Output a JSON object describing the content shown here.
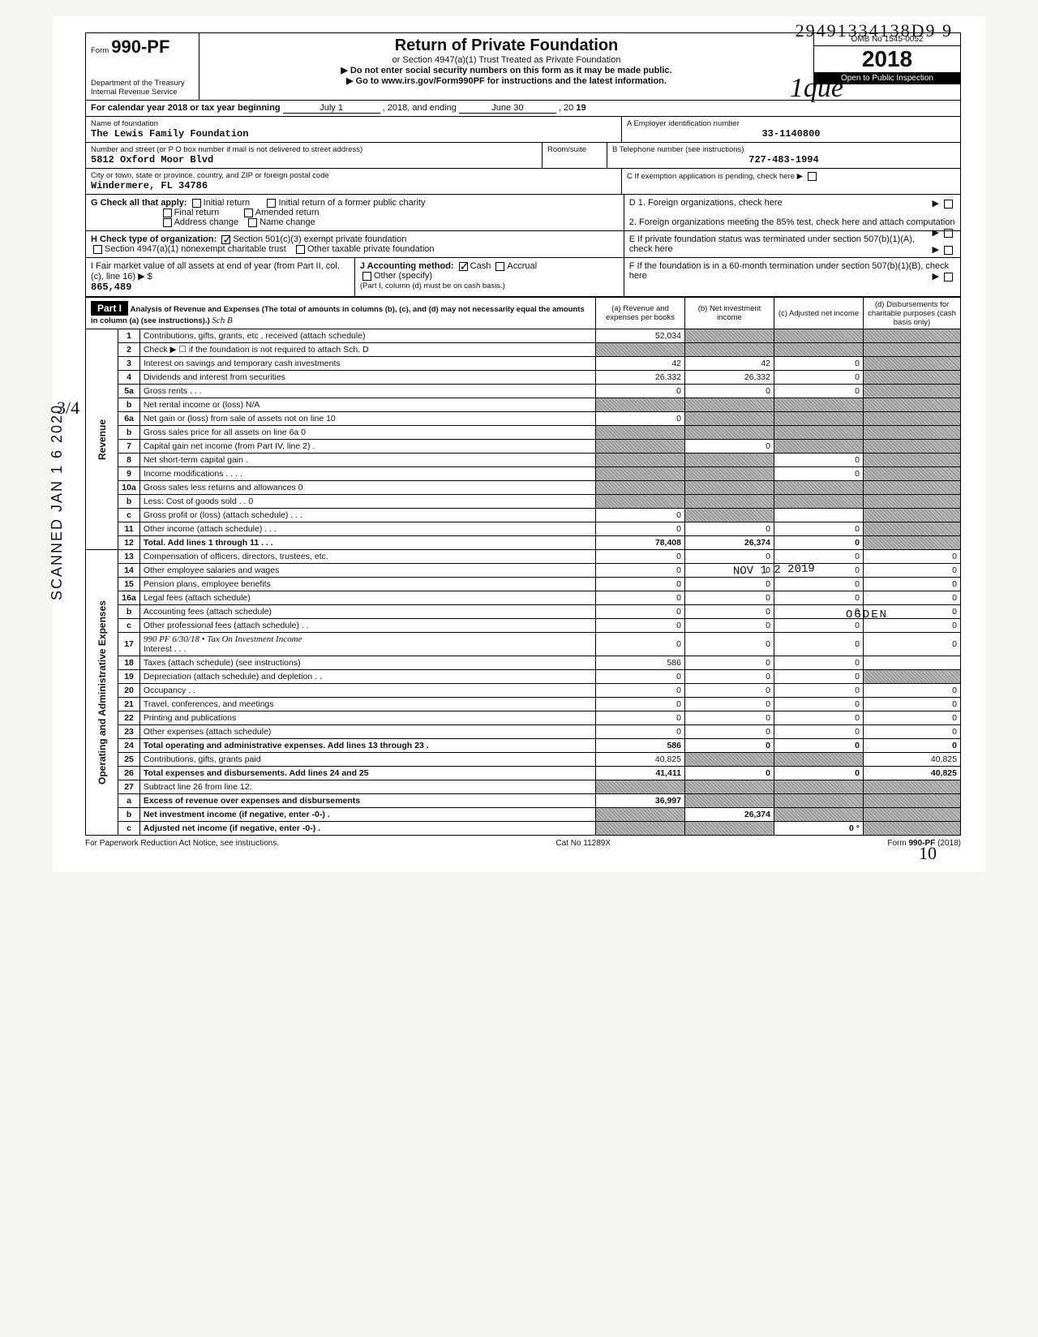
{
  "stamp_topright": "29491334138D9  9",
  "initials": "1que",
  "side_scanned": "SCANNED  JAN 1 6 2020",
  "side_fraction": "3/4",
  "form": {
    "form_prefix": "Form",
    "form_no": "990-PF",
    "dept": "Department of the Treasury",
    "irs": "Internal Revenue Service",
    "title": "Return of Private Foundation",
    "subtitle1": "or Section 4947(a)(1) Trust Treated as Private Foundation",
    "subtitle2": "▶ Do not enter social security numbers on this form as it may be made public.",
    "subtitle3": "▶ Go to www.irs.gov/Form990PF for instructions and the latest information.",
    "omb": "OMB No 1545-0052",
    "year": "2018",
    "open": "Open to Public Inspection"
  },
  "period": {
    "label": "For calendar year 2018 or tax year beginning",
    "begin": "July 1",
    "mid": ", 2018, and ending",
    "end": "June 30",
    "endyr_prefix": ", 20",
    "endyr": "19"
  },
  "id": {
    "name_lbl": "Name of foundation",
    "name": "The Lewis Family Foundation",
    "ein_lbl": "A  Employer identification number",
    "ein": "33-1140800",
    "addr_lbl": "Number and street (or P O box number if mail is not delivered to street address)",
    "addr": "5812 Oxford Moor Blvd",
    "room_lbl": "Room/suite",
    "phone_lbl": "B  Telephone number (see instructions)",
    "phone": "727-483-1994",
    "city_lbl": "City or town, state or province, country, and ZIP or foreign postal code",
    "city": "Windermere, FL 34786",
    "pending_lbl": "C  If exemption application is pending, check here ▶"
  },
  "checks": {
    "G": "G   Check all that apply:",
    "g_opts": [
      "Initial return",
      "Final return",
      "Address change",
      "Initial return of a former public charity",
      "Amended return",
      "Name change"
    ],
    "H": "H   Check type of organization:",
    "h1": "Section 501(c)(3) exempt private foundation",
    "h2": "Section 4947(a)(1) nonexempt charitable trust",
    "h3": "Other taxable private foundation",
    "I": "I    Fair market value of all assets at end of year (from Part II, col. (c), line 16) ▶ $",
    "I_val": "865,489",
    "J": "J   Accounting method:",
    "j_cash": "Cash",
    "j_acc": "Accrual",
    "j_other": "Other (specify)",
    "j_note": "(Part I, column (d) must be on cash basis.)",
    "D1": "D  1. Foreign organizations, check here",
    "D2": "2. Foreign organizations meeting the 85% test, check here and attach computation",
    "E": "E  If private foundation status was terminated under section 507(b)(1)(A), check here",
    "F": "F  If the foundation is in a 60-month termination under section 507(b)(1)(B), check here"
  },
  "part1": {
    "tag": "Part I",
    "title": "Analysis of Revenue and Expenses (The total of amounts in columns (b), (c), and (d) may not necessarily equal the amounts in column (a) (see instructions).)",
    "hand_sch": "Sch B",
    "cols": [
      "(a) Revenue and expenses per books",
      "(b) Net investment income",
      "(c) Adjusted net income",
      "(d) Disbursements for charitable purposes (cash basis only)"
    ]
  },
  "revenue_label": "Revenue",
  "opexp_label": "Operating and Administrative Expenses",
  "rows": [
    {
      "n": "1",
      "d": "Contributions, gifts, grants, etc , received (attach schedule)",
      "a": "52,034",
      "b": "",
      "c": "",
      "dsh": [
        "b",
        "c",
        "d"
      ]
    },
    {
      "n": "2",
      "d": "Check ▶ ☐ if the foundation is not required to attach Sch. D",
      "a": "",
      "dsh": [
        "a",
        "b",
        "c",
        "d"
      ]
    },
    {
      "n": "3",
      "d": "Interest on savings and temporary cash investments",
      "a": "42",
      "b": "42",
      "c": "0",
      "dsh": [
        "d"
      ]
    },
    {
      "n": "4",
      "d": "Dividends and interest from securities",
      "a": "26,332",
      "b": "26,332",
      "c": "0",
      "dsh": [
        "d"
      ]
    },
    {
      "n": "5a",
      "d": "Gross rents   .   .   .",
      "a": "0",
      "b": "0",
      "c": "0",
      "dsh": [
        "d"
      ]
    },
    {
      "n": "b",
      "d": "Net rental income or (loss)                                          N/A",
      "a": "",
      "dsh": [
        "a",
        "b",
        "c",
        "d"
      ]
    },
    {
      "n": "6a",
      "d": "Net gain or (loss) from sale of assets not on line 10",
      "a": "0",
      "dsh": [
        "b",
        "c",
        "d"
      ]
    },
    {
      "n": "b",
      "d": "Gross sales price for all assets on line 6a                    0",
      "dsh": [
        "a",
        "b",
        "c",
        "d"
      ]
    },
    {
      "n": "7",
      "d": "Capital gain net income (from Part IV, line 2)   .",
      "b": "0",
      "dsh": [
        "a",
        "c",
        "d"
      ]
    },
    {
      "n": "8",
      "d": "Net short-term capital gain    .",
      "c": "0",
      "dsh": [
        "a",
        "b",
        "d"
      ]
    },
    {
      "n": "9",
      "d": "Income modifications      .    .    .    .",
      "c": "0",
      "dsh": [
        "a",
        "b",
        "d"
      ]
    },
    {
      "n": "10a",
      "d": "Gross sales less returns and allowances              0",
      "dsh": [
        "a",
        "b",
        "c",
        "d"
      ]
    },
    {
      "n": "b",
      "d": "Less: Cost of goods sold     .    .                        0",
      "dsh": [
        "a",
        "b",
        "c",
        "d"
      ]
    },
    {
      "n": "c",
      "d": "Gross profit or (loss) (attach schedule)   .   .   .",
      "a": "0",
      "c": "",
      "dsh": [
        "b",
        "d"
      ]
    },
    {
      "n": "11",
      "d": "Other income (attach schedule)    .    .    .",
      "a": "0",
      "b": "0",
      "c": "0",
      "dsh": [
        "d"
      ]
    },
    {
      "n": "12",
      "d": "Total. Add lines 1 through 11    .    .    .",
      "a": "78,408",
      "b": "26,374",
      "c": "0",
      "dsh": [
        "d"
      ],
      "bold": true
    },
    {
      "n": "13",
      "d": "Compensation of officers, directors, trustees, etc.",
      "a": "0",
      "b": "0",
      "c": "0",
      "dd": "0"
    },
    {
      "n": "14",
      "d": "Other employee salaries and wages",
      "a": "0",
      "b": "0",
      "c": "0",
      "dd": "0"
    },
    {
      "n": "15",
      "d": "Pension plans, employee benefits",
      "a": "0",
      "b": "0",
      "c": "0",
      "dd": "0"
    },
    {
      "n": "16a",
      "d": "Legal fees (attach schedule)",
      "a": "0",
      "b": "0",
      "c": "0",
      "dd": "0"
    },
    {
      "n": "b",
      "d": "Accounting fees (attach schedule)",
      "a": "0",
      "b": "0",
      "c": "0",
      "dd": "0"
    },
    {
      "n": "c",
      "d": "Other professional fees (attach schedule)   .   .",
      "a": "0",
      "b": "0",
      "c": "0",
      "dd": "0"
    },
    {
      "n": "17",
      "d": "Interest   .   .   .",
      "a": "0",
      "b": "0",
      "c": "0",
      "dd": "0",
      "hand": "990 PF 6/30/18 • Tax On Investment Income"
    },
    {
      "n": "18",
      "d": "Taxes (attach schedule) (see instructions)",
      "a": "586",
      "b": "0",
      "c": "0",
      "dd": ""
    },
    {
      "n": "19",
      "d": "Depreciation (attach schedule) and depletion   .   .",
      "a": "0",
      "b": "0",
      "c": "0",
      "dsh": [
        "d"
      ]
    },
    {
      "n": "20",
      "d": "Occupancy   .   .",
      "a": "0",
      "b": "0",
      "c": "0",
      "dd": "0"
    },
    {
      "n": "21",
      "d": "Travel, conferences, and meetings",
      "a": "0",
      "b": "0",
      "c": "0",
      "dd": "0"
    },
    {
      "n": "22",
      "d": "Printing and publications",
      "a": "0",
      "b": "0",
      "c": "0",
      "dd": "0"
    },
    {
      "n": "23",
      "d": "Other expenses (attach schedule)",
      "a": "0",
      "b": "0",
      "c": "0",
      "dd": "0"
    },
    {
      "n": "24",
      "d": "Total operating and administrative expenses. Add lines 13 through 23   .",
      "a": "586",
      "b": "0",
      "c": "0",
      "dd": "0",
      "bold": true
    },
    {
      "n": "25",
      "d": "Contributions, gifts, grants paid",
      "a": "40,825",
      "dd": "40,825",
      "dsh": [
        "b",
        "c"
      ]
    },
    {
      "n": "26",
      "d": "Total expenses and disbursements. Add lines 24 and 25",
      "a": "41,411",
      "b": "0",
      "c": "0",
      "dd": "40,825",
      "bold": true
    },
    {
      "n": "27",
      "d": "Subtract line 26 from line 12:",
      "dsh": [
        "a",
        "b",
        "c",
        "d"
      ]
    },
    {
      "n": "a",
      "d": "Excess of revenue over expenses and disbursements",
      "a": "36,997",
      "dsh": [
        "b",
        "c",
        "d"
      ],
      "bold": true
    },
    {
      "n": "b",
      "d": "Net investment income (if negative, enter -0-)   .",
      "b": "26,374",
      "dsh": [
        "a",
        "c",
        "d"
      ],
      "bold": true
    },
    {
      "n": "c",
      "d": "Adjusted net income (if negative, enter -0-)   .",
      "c": "0",
      "dsh": [
        "a",
        "b",
        "d"
      ],
      "bold": true,
      "handc": "°"
    }
  ],
  "stamps": {
    "nov": "NOV 1 2 2019",
    "ogden": "OGDEN"
  },
  "footer": {
    "left": "For Paperwork Reduction Act Notice, see instructions.",
    "mid": "Cat No 11289X",
    "right": "Form 990-PF (2018)"
  },
  "pgnum": "10"
}
